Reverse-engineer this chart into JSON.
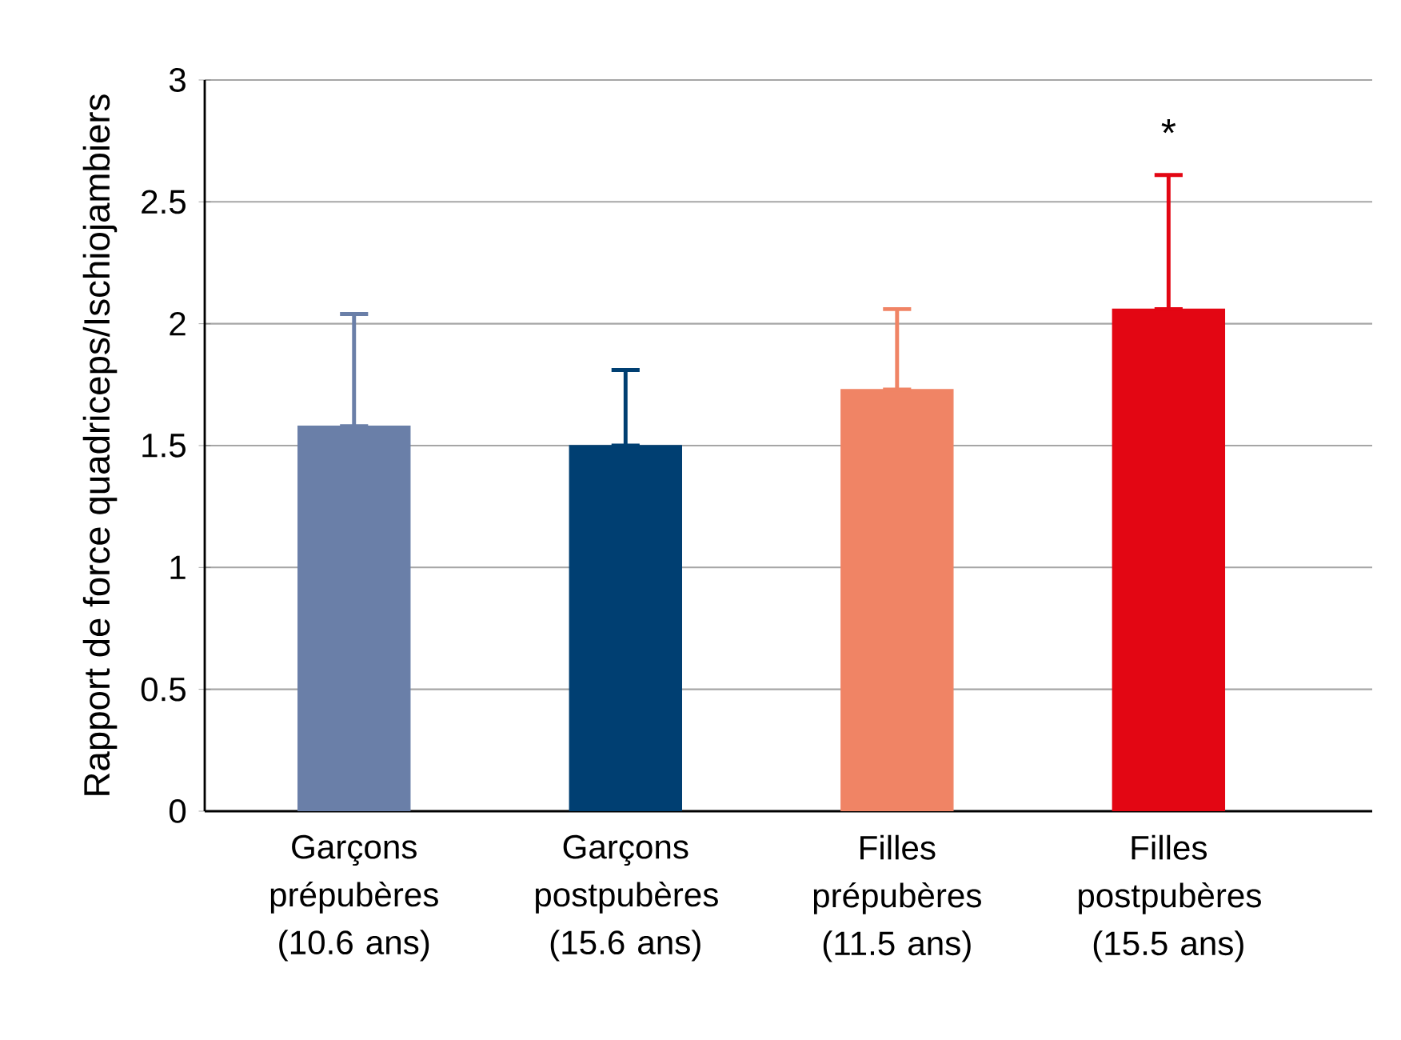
{
  "chart_data": {
    "type": "bar",
    "ylabel": "Rapport de force quadriceps/Ischiojambiers",
    "categories": [
      "Garçons prépubères (10.6 ans)",
      "Garçons postpubères (15.6 ans)",
      "Filles prépubères (11.5 ans)",
      "Filles postpubères (15.5 ans)"
    ],
    "values": [
      1.58,
      1.5,
      1.73,
      2.06
    ],
    "colors": [
      "#6a7fa8",
      "#003f72",
      "#f08465",
      "#e30613"
    ],
    "errors": [
      [
        1.58,
        2.04
      ],
      [
        1.5,
        1.81
      ],
      [
        1.73,
        2.06
      ],
      [
        2.06,
        2.61
      ]
    ],
    "ylim": [
      0,
      3
    ],
    "yticks": [
      0,
      0.5,
      1,
      1.5,
      2,
      2.5,
      3
    ],
    "grid": "y",
    "annotations": [
      "*"
    ]
  }
}
